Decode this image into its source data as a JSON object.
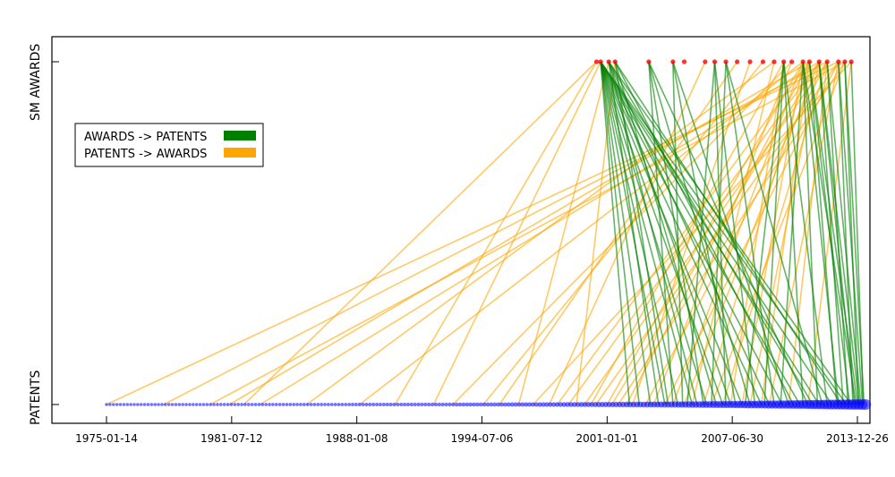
{
  "chart_data": {
    "type": "line",
    "title": "",
    "xlabel": "",
    "ylabel": "",
    "x_ticks": [
      {
        "date": "1975-01-14",
        "label": "1975-01-14"
      },
      {
        "date": "1981-07-12",
        "label": "1981-07-12"
      },
      {
        "date": "1988-01-08",
        "label": "1988-01-08"
      },
      {
        "date": "1994-07-06",
        "label": "1994-07-06"
      },
      {
        "date": "2001-01-01",
        "label": "2001-01-01"
      },
      {
        "date": "2007-06-30",
        "label": "2007-06-30"
      },
      {
        "date": "2013-12-26",
        "label": "2013-12-26"
      }
    ],
    "xlim": [
      "1972-09-01",
      "2015-06-01"
    ],
    "y_categories": [
      "PATENTS",
      "SM AWARDS"
    ],
    "grid": false,
    "legend": {
      "placement": "upper-left",
      "entries": [
        {
          "name": "AWARDS -> PATENTS",
          "color": "#008000"
        },
        {
          "name": "PATENTS -> AWARDS",
          "color": "#ffa500"
        }
      ]
    },
    "node_colors": {
      "awards": "#ff0000",
      "patents": "#0000ff"
    },
    "patents_span": [
      "1975-01-14",
      "2014-06-01"
    ],
    "award_dates": [
      "2000-06-15",
      "2000-09-01",
      "2001-02-01",
      "2001-06-01",
      "2003-03-01",
      "2004-06-01",
      "2005-01-01",
      "2006-02-01",
      "2006-08-01",
      "2007-03-01",
      "2007-10-01",
      "2008-06-01",
      "2009-02-01",
      "2009-09-01",
      "2010-03-01",
      "2010-08-01",
      "2011-03-01",
      "2011-07-01",
      "2012-01-01",
      "2012-06-01",
      "2013-01-01",
      "2013-05-01",
      "2013-09-01"
    ],
    "series": [
      {
        "name": "AWARDS -> PATENTS",
        "links": [
          [
            "2000-09-01",
            "2002-03-01"
          ],
          [
            "2000-09-01",
            "2002-09-01"
          ],
          [
            "2000-09-01",
            "2003-04-01"
          ],
          [
            "2000-09-01",
            "2004-01-01"
          ],
          [
            "2000-09-01",
            "2004-09-01"
          ],
          [
            "2000-09-01",
            "2005-06-01"
          ],
          [
            "2000-09-01",
            "2006-03-01"
          ],
          [
            "2000-09-01",
            "2007-01-01"
          ],
          [
            "2000-09-01",
            "2008-01-01"
          ],
          [
            "2000-09-01",
            "2009-01-01"
          ],
          [
            "2000-09-01",
            "2010-02-01"
          ],
          [
            "2000-09-01",
            "2011-01-01"
          ],
          [
            "2000-09-01",
            "2012-01-01"
          ],
          [
            "2000-09-01",
            "2012-09-01"
          ],
          [
            "2000-09-01",
            "2013-06-01"
          ],
          [
            "2001-02-01",
            "2003-09-01"
          ],
          [
            "2001-02-01",
            "2005-09-01"
          ],
          [
            "2001-02-01",
            "2007-06-01"
          ],
          [
            "2001-02-01",
            "2009-06-01"
          ],
          [
            "2001-02-01",
            "2011-09-01"
          ],
          [
            "2001-02-01",
            "2013-09-01"
          ],
          [
            "2001-06-01",
            "2004-03-01"
          ],
          [
            "2001-06-01",
            "2006-09-01"
          ],
          [
            "2001-06-01",
            "2010-09-01"
          ],
          [
            "2001-06-01",
            "2013-03-01"
          ],
          [
            "2003-03-01",
            "2004-06-01"
          ],
          [
            "2003-03-01",
            "2006-01-01"
          ],
          [
            "2003-03-01",
            "2008-06-01"
          ],
          [
            "2003-03-01",
            "2011-06-01"
          ],
          [
            "2004-06-01",
            "2004-12-01"
          ],
          [
            "2004-06-01",
            "2007-09-01"
          ],
          [
            "2004-06-01",
            "2010-06-01"
          ],
          [
            "2006-08-01",
            "2005-03-01"
          ],
          [
            "2006-08-01",
            "2007-03-01"
          ],
          [
            "2006-08-01",
            "2008-09-01"
          ],
          [
            "2007-03-01",
            "2006-06-01"
          ],
          [
            "2007-03-01",
            "2009-09-01"
          ],
          [
            "2007-03-01",
            "2012-03-01"
          ],
          [
            "2010-03-01",
            "2008-03-01"
          ],
          [
            "2010-03-01",
            "2009-03-01"
          ],
          [
            "2010-03-01",
            "2011-03-01"
          ],
          [
            "2010-03-01",
            "2012-06-01"
          ],
          [
            "2011-03-01",
            "2010-01-01"
          ],
          [
            "2011-03-01",
            "2011-12-01"
          ],
          [
            "2011-03-01",
            "2013-01-01"
          ],
          [
            "2011-03-01",
            "2013-12-01"
          ],
          [
            "2011-07-01",
            "2012-12-01"
          ],
          [
            "2011-07-01",
            "2013-08-01"
          ],
          [
            "2011-07-01",
            "2014-01-01"
          ],
          [
            "2012-01-01",
            "2013-04-01"
          ],
          [
            "2012-01-01",
            "2013-11-01"
          ],
          [
            "2012-01-01",
            "2014-02-01"
          ],
          [
            "2012-06-01",
            "2013-07-01"
          ],
          [
            "2012-06-01",
            "2014-03-01"
          ],
          [
            "2013-01-01",
            "2013-10-01"
          ],
          [
            "2013-01-01",
            "2014-04-01"
          ],
          [
            "2013-05-01",
            "2014-01-15"
          ],
          [
            "2013-05-01",
            "2014-05-01"
          ],
          [
            "2013-09-01",
            "2014-04-15"
          ]
        ]
      },
      {
        "name": "PATENTS -> AWARDS",
        "links": [
          [
            "1975-01-14",
            "2013-01-01"
          ],
          [
            "1978-01-01",
            "2012-06-01"
          ],
          [
            "1980-06-01",
            "2013-05-01"
          ],
          [
            "1981-06-01",
            "2011-07-01"
          ],
          [
            "1982-03-01",
            "2000-06-15"
          ],
          [
            "1983-01-01",
            "2012-01-01"
          ],
          [
            "1985-06-01",
            "2009-09-01"
          ],
          [
            "1988-03-01",
            "2011-03-01"
          ],
          [
            "1990-01-01",
            "2000-06-15"
          ],
          [
            "1992-01-01",
            "2000-09-01"
          ],
          [
            "1993-01-01",
            "2010-08-01"
          ],
          [
            "1994-08-01",
            "2009-02-01"
          ],
          [
            "1995-06-01",
            "2007-10-01"
          ],
          [
            "1996-06-01",
            "2001-02-01"
          ],
          [
            "1997-03-01",
            "2013-09-01"
          ],
          [
            "1998-01-01",
            "2006-02-01"
          ],
          [
            "1998-06-01",
            "2011-07-01"
          ],
          [
            "1999-01-01",
            "2012-01-01"
          ],
          [
            "1999-06-01",
            "2001-06-01"
          ],
          [
            "1999-11-01",
            "2012-06-01"
          ],
          [
            "2000-03-01",
            "2010-03-01"
          ],
          [
            "2000-06-01",
            "2013-01-01"
          ],
          [
            "2001-01-01",
            "2011-03-01"
          ],
          [
            "2001-04-01",
            "2012-01-01"
          ],
          [
            "2001-08-01",
            "2013-05-01"
          ],
          [
            "2002-01-01",
            "2011-07-01"
          ],
          [
            "2002-05-01",
            "2008-06-01"
          ],
          [
            "2003-01-01",
            "2012-06-01"
          ],
          [
            "2003-06-01",
            "2010-08-01"
          ],
          [
            "2004-01-01",
            "2013-01-01"
          ],
          [
            "2004-06-01",
            "2011-03-01"
          ],
          [
            "2005-01-01",
            "2012-01-01"
          ],
          [
            "2005-06-01",
            "2009-09-01"
          ],
          [
            "2006-01-01",
            "2011-07-01"
          ],
          [
            "2006-06-01",
            "2013-05-01"
          ],
          [
            "2007-01-01",
            "2012-06-01"
          ],
          [
            "2007-06-01",
            "2010-03-01"
          ],
          [
            "2008-01-01",
            "2011-03-01"
          ],
          [
            "2008-06-01",
            "2012-01-01"
          ],
          [
            "2009-01-01",
            "2011-07-01"
          ],
          [
            "2009-06-01",
            "2013-01-01"
          ],
          [
            "2010-06-01",
            "2012-06-01"
          ],
          [
            "2011-06-01",
            "2013-09-01"
          ]
        ]
      }
    ]
  }
}
